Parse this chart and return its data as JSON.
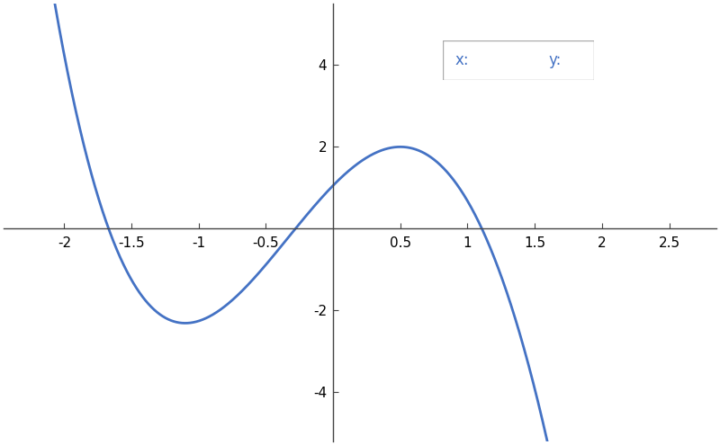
{
  "title": "",
  "xlim": [
    -2.45,
    2.85
  ],
  "ylim": [
    -5.2,
    5.5
  ],
  "xticks": [
    -2,
    -1.5,
    -1,
    -0.5,
    0.5,
    1,
    1.5,
    2,
    2.5
  ],
  "yticks": [
    -4,
    -2,
    2,
    4
  ],
  "line_color": "#4472C4",
  "line_width": 2.0,
  "background_color": "#ffffff",
  "legend_text_color": "#4472C4",
  "x_start": -2.25,
  "x_end": 2.15,
  "num_points": 3000,
  "figsize": [
    8.0,
    4.95
  ],
  "dpi": 100,
  "clip_ymin": -5.3,
  "clip_ymax": 5.6
}
